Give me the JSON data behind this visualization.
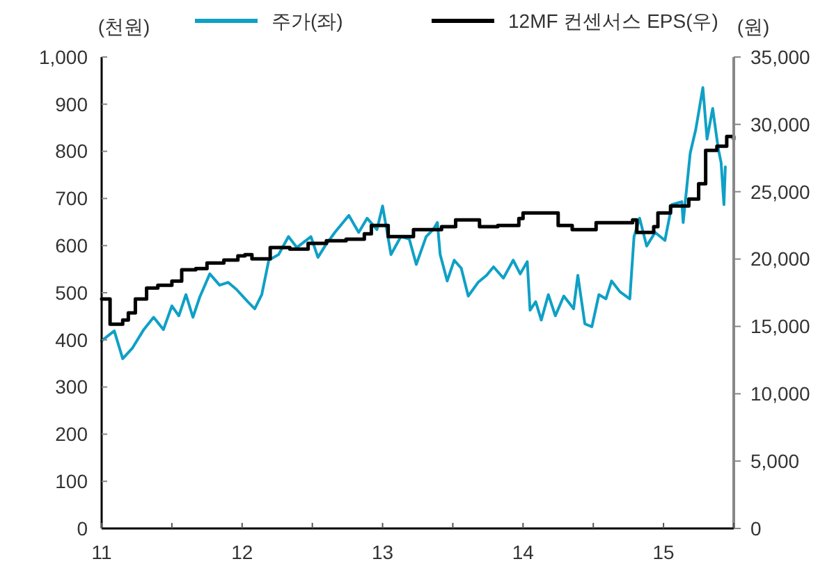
{
  "chart_data": {
    "type": "line",
    "ylabel": "(천원)",
    "y2label": "(원)",
    "legend": "top",
    "grid": false,
    "xlim": [
      11,
      15.5
    ],
    "xticks": [
      11,
      {
        "value": 11.5,
        "label": null
      },
      12,
      {
        "value": 12.5,
        "label": null
      },
      13,
      {
        "value": 13.5,
        "label": null
      },
      14,
      {
        "value": 14.5,
        "label": null
      },
      15,
      {
        "value": 15.5,
        "label": null
      }
    ],
    "ylim": [
      0,
      1000
    ],
    "yticks": [
      0,
      100,
      200,
      300,
      400,
      500,
      600,
      700,
      800,
      900,
      {
        "value": 1000,
        "label": "1,000"
      }
    ],
    "y2lim": [
      0,
      35000
    ],
    "y2ticks": [
      0,
      {
        "value": 5000,
        "label": "5,000"
      },
      {
        "value": 10000,
        "label": "10,000"
      },
      {
        "value": 15000,
        "label": "15,000"
      },
      {
        "value": 20000,
        "label": "20,000"
      },
      {
        "value": 25000,
        "label": "25,000"
      },
      {
        "value": 30000,
        "label": "30,000"
      },
      {
        "value": 35000,
        "label": "35,000"
      }
    ],
    "series": [
      {
        "name": "주가(좌)",
        "color": "#0fa0c6",
        "x": [
          11.0,
          11.09,
          11.15,
          11.22,
          11.3,
          11.37,
          11.44,
          11.5,
          11.55,
          11.6,
          11.65,
          11.7,
          11.77,
          11.84,
          11.9,
          11.96,
          12.04,
          12.09,
          12.14,
          12.19,
          12.26,
          12.33,
          12.39,
          12.49,
          12.54,
          12.59,
          12.66,
          12.76,
          12.83,
          12.89,
          12.96,
          13.0,
          13.06,
          13.13,
          13.19,
          13.24,
          13.31,
          13.36,
          13.39,
          13.41,
          13.46,
          13.51,
          13.56,
          13.61,
          13.68,
          13.74,
          13.79,
          13.86,
          13.93,
          13.98,
          14.03,
          14.05,
          14.09,
          14.13,
          14.18,
          14.23,
          14.29,
          14.36,
          14.39,
          14.44,
          14.49,
          14.54,
          14.59,
          14.63,
          14.69,
          14.76,
          14.79,
          14.83,
          14.88,
          14.94,
          15.01,
          15.06,
          15.13,
          15.14,
          15.19,
          15.23,
          15.28,
          15.31,
          15.35,
          15.39,
          15.41,
          15.43,
          15.44
        ],
        "values": [
          398,
          419,
          360,
          383,
          422,
          448,
          422,
          472,
          451,
          496,
          448,
          492,
          540,
          516,
          522,
          507,
          481,
          466,
          496,
          569,
          581,
          619,
          596,
          619,
          575,
          599,
          628,
          664,
          628,
          658,
          634,
          684,
          581,
          619,
          614,
          560,
          619,
          634,
          649,
          581,
          525,
          569,
          552,
          493,
          522,
          537,
          555,
          531,
          569,
          540,
          566,
          463,
          481,
          442,
          496,
          451,
          493,
          466,
          537,
          434,
          428,
          496,
          487,
          525,
          502,
          487,
          619,
          658,
          599,
          628,
          611,
          687,
          693,
          649,
          796,
          847,
          935,
          826,
          891,
          805,
          776,
          687,
          767
        ]
      },
      {
        "name": "12MF 컨센서스 EPS(우)",
        "type": "step",
        "axis": "y2",
        "color": "#000000",
        "x": [
          11.0,
          11.05,
          11.06,
          11.15,
          11.19,
          11.24,
          11.3,
          11.32,
          11.4,
          11.5,
          11.57,
          11.67,
          11.75,
          11.87,
          11.97,
          12.02,
          12.07,
          12.2,
          12.34,
          12.47,
          12.6,
          12.74,
          12.87,
          12.92,
          13.04,
          13.22,
          13.42,
          13.52,
          13.69,
          13.82,
          13.97,
          14.0,
          14.25,
          14.35,
          14.52,
          14.78,
          14.81,
          14.93,
          14.96,
          15.05,
          15.18,
          15.25,
          15.3,
          15.38,
          15.45,
          15.5
        ],
        "values": [
          17030,
          17030,
          15170,
          15480,
          16000,
          17030,
          17030,
          17850,
          18060,
          18370,
          19200,
          19300,
          19710,
          19920,
          20230,
          20330,
          20020,
          20850,
          20740,
          21160,
          21360,
          21470,
          21880,
          22500,
          21670,
          22190,
          22400,
          22910,
          22400,
          22500,
          23010,
          23430,
          22500,
          22190,
          22700,
          22910,
          21980,
          22400,
          23430,
          23940,
          24460,
          25590,
          28070,
          28380,
          29100,
          28900
        ]
      }
    ]
  }
}
